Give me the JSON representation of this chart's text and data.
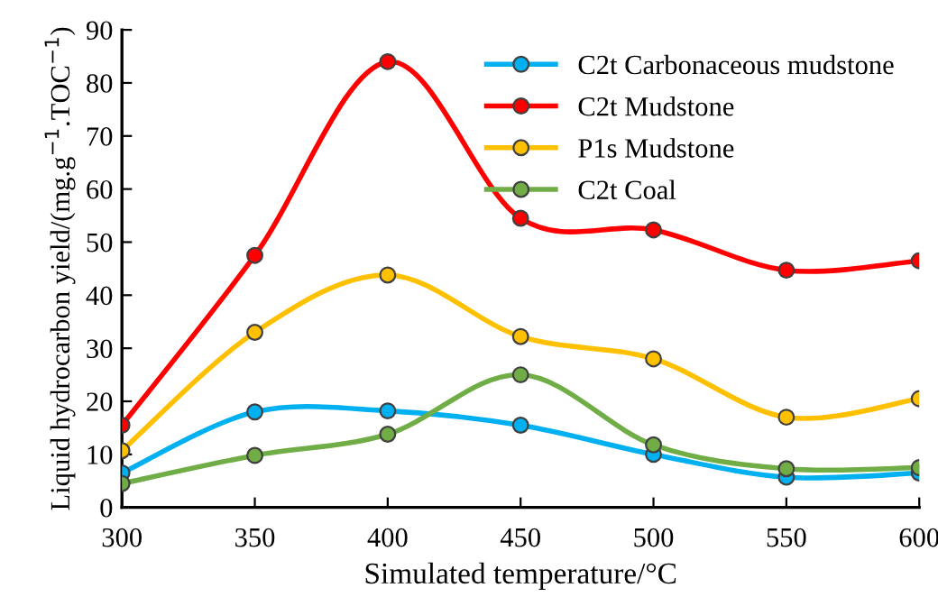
{
  "chart_data": {
    "type": "line",
    "xlabel": "Simulated temperature/°C",
    "ylabel": "Liquid hydrocarbon yield/(mg.g$^{−1}$.TOC$^{−1}$)",
    "x": [
      300,
      350,
      400,
      450,
      500,
      550,
      600
    ],
    "series": [
      {
        "name": "C2t Carbonaceous mudstone",
        "color": "#00b0f0",
        "values": [
          6.5,
          18,
          18.2,
          15.5,
          10,
          5.7,
          6.5
        ]
      },
      {
        "name": "C2t Mudstone",
        "color": "#ff0000",
        "values": [
          15.5,
          47.5,
          84,
          54.5,
          52.3,
          44.7,
          46.5
        ]
      },
      {
        "name": "P1s Mudstone",
        "color": "#ffc000",
        "values": [
          10.7,
          33,
          43.8,
          32.2,
          28,
          17,
          20.5
        ]
      },
      {
        "name": "C2t Coal",
        "color": "#70ad47",
        "values": [
          4.5,
          9.8,
          13.8,
          25,
          11.8,
          7.3,
          7.5
        ]
      }
    ],
    "xlim": [
      300,
      600
    ],
    "xticks": [
      300,
      350,
      400,
      450,
      500,
      550,
      600
    ],
    "ylim": [
      0,
      90
    ],
    "yticks": [
      0,
      10,
      20,
      30,
      40,
      50,
      60,
      70,
      80,
      90
    ],
    "grid": false,
    "legend": "top right",
    "marker": "circle",
    "line_style": "solid"
  }
}
